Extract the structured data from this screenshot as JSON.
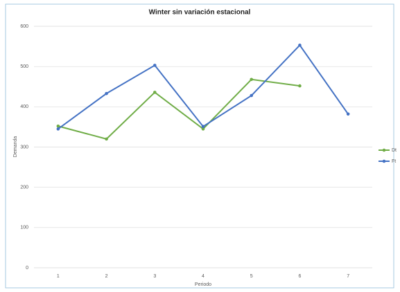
{
  "chart_data": {
    "type": "line",
    "title": "Winter sin variación estacional",
    "x_label": "Periodo",
    "y_label": "Demanda",
    "categories": [
      "1",
      "2",
      "3",
      "4",
      "5",
      "6",
      "7"
    ],
    "series": [
      {
        "name": "Dt",
        "color": "#70ad47",
        "values": [
          352,
          320,
          436,
          345,
          468,
          452,
          null
        ]
      },
      {
        "name": "Ft",
        "color": "#4472c4",
        "values": [
          345,
          433,
          503,
          351,
          428,
          553,
          382
        ]
      }
    ],
    "ylim": [
      0,
      600
    ],
    "yticks": [
      0,
      100,
      200,
      300,
      400,
      500,
      600
    ],
    "grid": true,
    "legend": "right"
  }
}
